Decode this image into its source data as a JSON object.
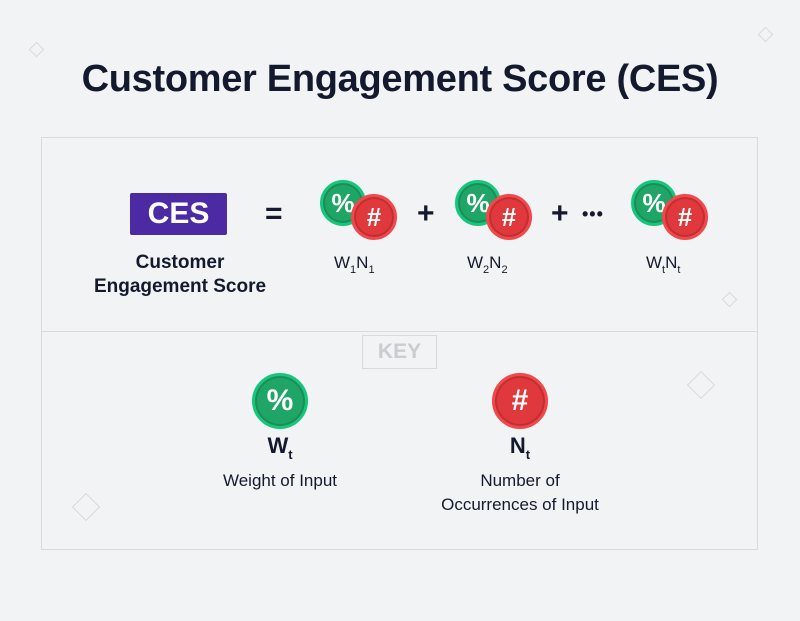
{
  "title": "Customer Engagement Score (CES)",
  "formula": {
    "ces_abbrev": "CES",
    "ces_label_line1": "Customer",
    "ces_label_line2": "Engagement Score",
    "equals": "=",
    "plus": "+",
    "ellipsis": "•••",
    "weight_symbol": "%",
    "count_symbol": "#",
    "terms": [
      {
        "w": "W",
        "w_sub": "1",
        "n": "N",
        "n_sub": "1"
      },
      {
        "w": "W",
        "w_sub": "2",
        "n": "N",
        "n_sub": "2"
      },
      {
        "w": "W",
        "w_sub": "t",
        "n": "N",
        "n_sub": "t"
      }
    ]
  },
  "key": {
    "label": "KEY",
    "weight": {
      "symbol": "%",
      "letter": "W",
      "sub": "t",
      "desc_line1": "Weight of Input"
    },
    "count": {
      "symbol": "#",
      "letter": "N",
      "sub": "t",
      "desc_line1": "Number of",
      "desc_line2": "Occurrences of Input"
    }
  },
  "colors": {
    "background": "#f2f3f4",
    "title": "#141a2e",
    "ces_box": "#4b2aa3",
    "weight_coin": "#1fa566",
    "count_coin": "#e0393d"
  }
}
